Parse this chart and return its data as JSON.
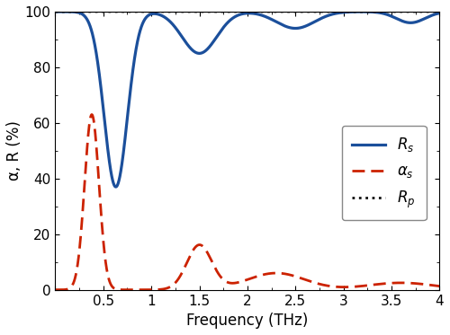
{
  "xlim": [
    0,
    4
  ],
  "ylim": [
    0,
    100
  ],
  "xlabel": "Frequency (THz)",
  "ylabel": "α, R (%)",
  "Rs_color": "#1b4f9b",
  "alpha_s_color": "#cc2200",
  "Rp_color": "#111111",
  "Rs_linewidth": 2.3,
  "alpha_s_linewidth": 2.0,
  "Rp_linewidth": 2.0,
  "legend_labels": [
    "$R_s$",
    "$\\alpha_s$",
    "$R_p$"
  ],
  "xticks": [
    0,
    0.5,
    1,
    1.5,
    2,
    2.5,
    3,
    3.5,
    4
  ],
  "xticklabels": [
    "",
    "0.5",
    "1",
    "1.5",
    "2",
    "2.5",
    "3",
    "3.5",
    "4"
  ],
  "yticks": [
    0,
    20,
    40,
    60,
    80,
    100
  ]
}
